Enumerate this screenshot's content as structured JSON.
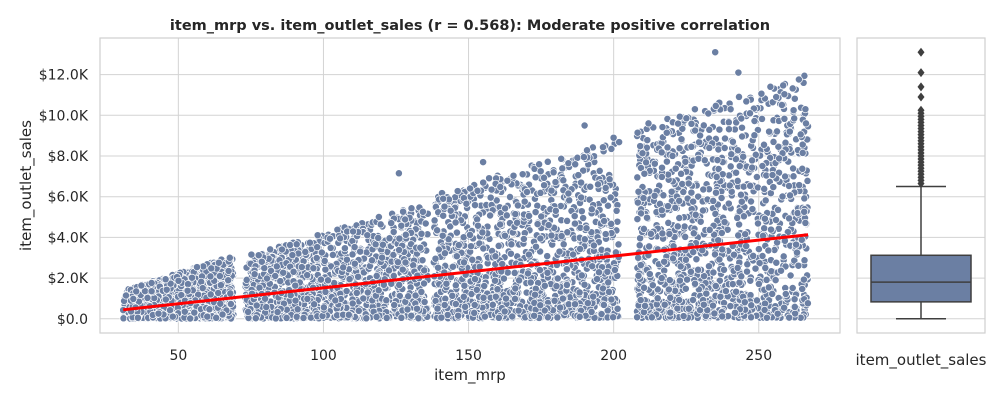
{
  "chart_data": [
    {
      "type": "scatter",
      "title": "item_mrp vs. item_outlet_sales (r = 0.568): Moderate positive correlation",
      "xlabel": "item_mrp",
      "ylabel": "item_outlet_sales",
      "xlim": [
        23,
        278
      ],
      "ylim": [
        -700,
        13800
      ],
      "xticks": [
        50,
        100,
        150,
        200,
        250
      ],
      "xtick_labels": [
        "50",
        "100",
        "150",
        "200",
        "250"
      ],
      "yticks": [
        0,
        2000,
        4000,
        6000,
        8000,
        10000,
        12000
      ],
      "ytick_labels": [
        "$0.0",
        "$2.0K",
        "$4.0K",
        "$6.0K",
        "$8.0K",
        "$10.0K",
        "$12.0K"
      ],
      "grid": true,
      "point_color": "#6b7fa3",
      "clusters": [
        {
          "x_range": [
            31,
            69
          ],
          "sales_per_mrp": [
            0.2,
            45
          ]
        },
        {
          "x_range": [
            73,
            136
          ],
          "sales_per_mrp": [
            0.2,
            42
          ]
        },
        {
          "x_range": [
            138,
            202
          ],
          "sales_per_mrp": [
            0.2,
            44
          ]
        },
        {
          "x_range": [
            208,
            267
          ],
          "sales_per_mrp": [
            0.2,
            45
          ]
        }
      ],
      "notable_points": [
        {
          "x": 126,
          "y": 7150
        },
        {
          "x": 235,
          "y": 13100
        },
        {
          "x": 243,
          "y": 12100
        },
        {
          "x": 254,
          "y": 11400
        },
        {
          "x": 256,
          "y": 10900
        },
        {
          "x": 228,
          "y": 10300
        },
        {
          "x": 247,
          "y": 10100
        },
        {
          "x": 262,
          "y": 10250
        },
        {
          "x": 155,
          "y": 7700
        },
        {
          "x": 190,
          "y": 9500
        },
        {
          "x": 212,
          "y": 9600
        },
        {
          "x": 200,
          "y": 8900
        }
      ],
      "trend_line": {
        "color": "#ff0000",
        "points": [
          {
            "x": 31,
            "y": 440
          },
          {
            "x": 267,
            "y": 4130
          }
        ]
      }
    },
    {
      "type": "box",
      "xlabel": "item_outlet_sales",
      "ylim": [
        -700,
        13800
      ],
      "box_color": "#6b7fa3",
      "whisker_low": 0,
      "q1": 830,
      "median": 1800,
      "q3": 3120,
      "whisker_high": 6500,
      "outliers": [
        6650,
        6800,
        6950,
        7100,
        7250,
        7400,
        7550,
        7700,
        7850,
        8000,
        8150,
        8300,
        8450,
        8600,
        8750,
        8900,
        9050,
        9200,
        9350,
        9500,
        9650,
        9800,
        9950,
        10100,
        10250,
        10900,
        11400,
        12100,
        13100
      ]
    }
  ]
}
